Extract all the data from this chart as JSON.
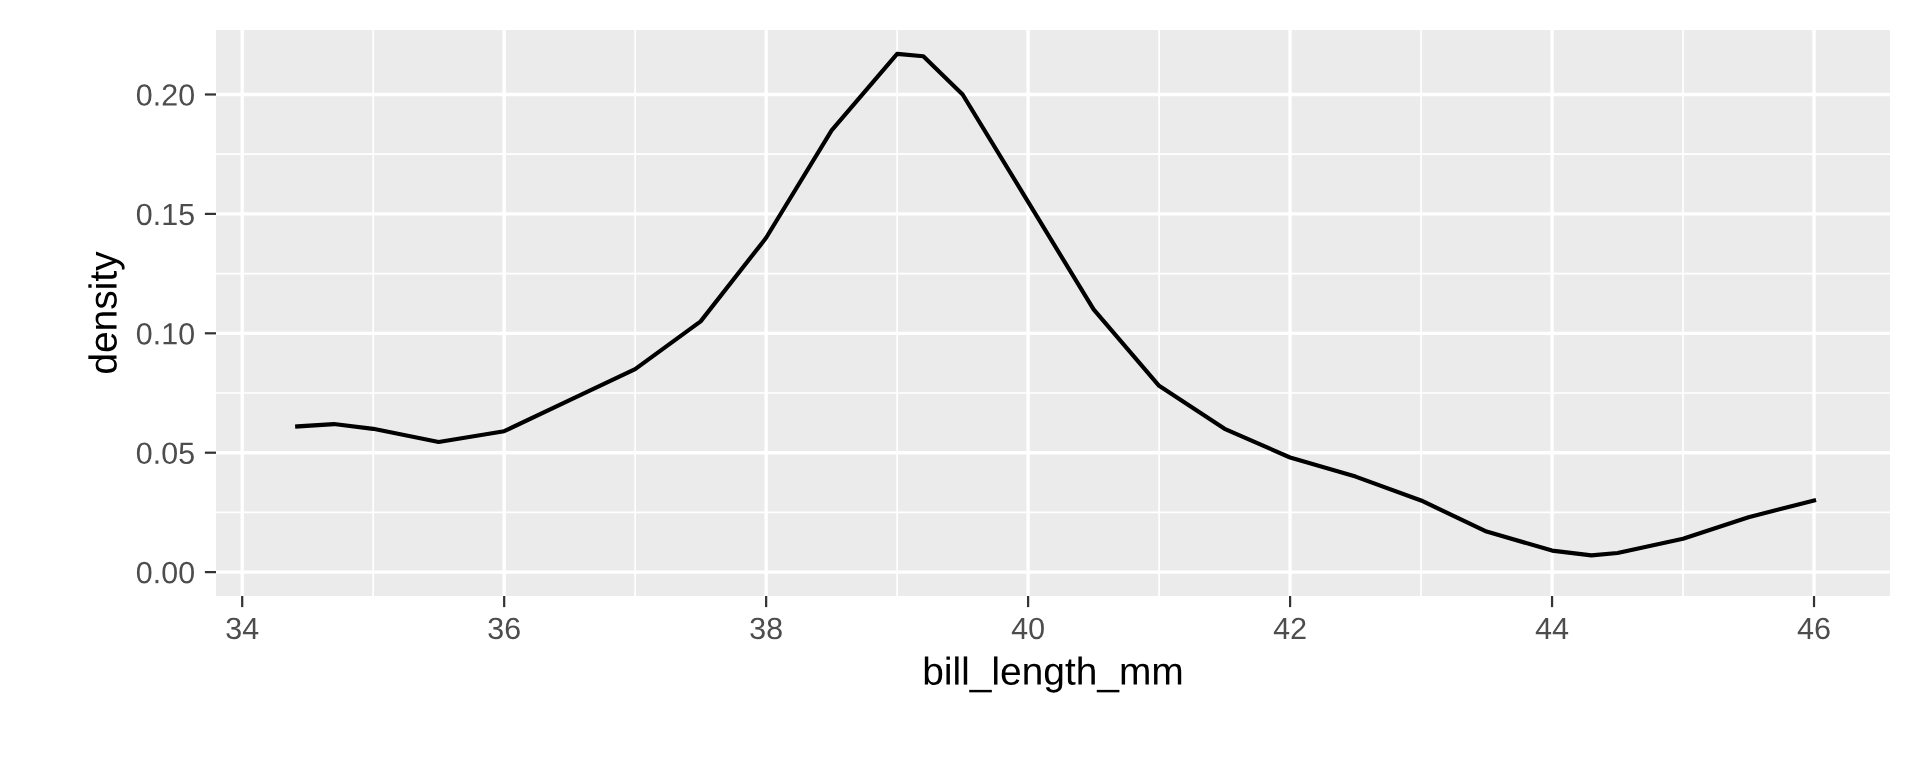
{
  "chart_data": {
    "type": "line",
    "xlabel": "bill_length_mm",
    "ylabel": "density",
    "x": [
      34.42,
      34.7,
      35.0,
      35.5,
      36.0,
      36.5,
      37.0,
      37.5,
      38.0,
      38.5,
      39.0,
      39.2,
      39.5,
      40.0,
      40.5,
      41.0,
      41.5,
      42.0,
      42.5,
      43.0,
      43.5,
      44.0,
      44.3,
      44.5,
      45.0,
      45.5,
      46.0
    ],
    "series": [
      {
        "color": "#000000",
        "values": [
          0.061,
          0.062,
          0.06,
          0.0545,
          0.059,
          0.072,
          0.085,
          0.105,
          0.14,
          0.185,
          0.217,
          0.216,
          0.2,
          0.155,
          0.11,
          0.078,
          0.06,
          0.048,
          0.04,
          0.03,
          0.017,
          0.009,
          0.007,
          0.008,
          0.014,
          0.023,
          0.03
        ]
      }
    ],
    "xlim": [
      33.8,
      46.58
    ],
    "ylim": [
      -0.01,
      0.227
    ],
    "xticks": [
      34,
      36,
      38,
      40,
      42,
      44,
      46
    ],
    "yticks": [
      {
        "value": 0,
        "label": "0.00"
      },
      {
        "value": 0.05,
        "label": "0.05"
      },
      {
        "value": 0.1,
        "label": "0.10"
      },
      {
        "value": 0.15,
        "label": "0.15"
      },
      {
        "value": 0.2,
        "label": "0.20"
      }
    ],
    "grid": true,
    "marker": "none",
    "line_style": "solid"
  }
}
